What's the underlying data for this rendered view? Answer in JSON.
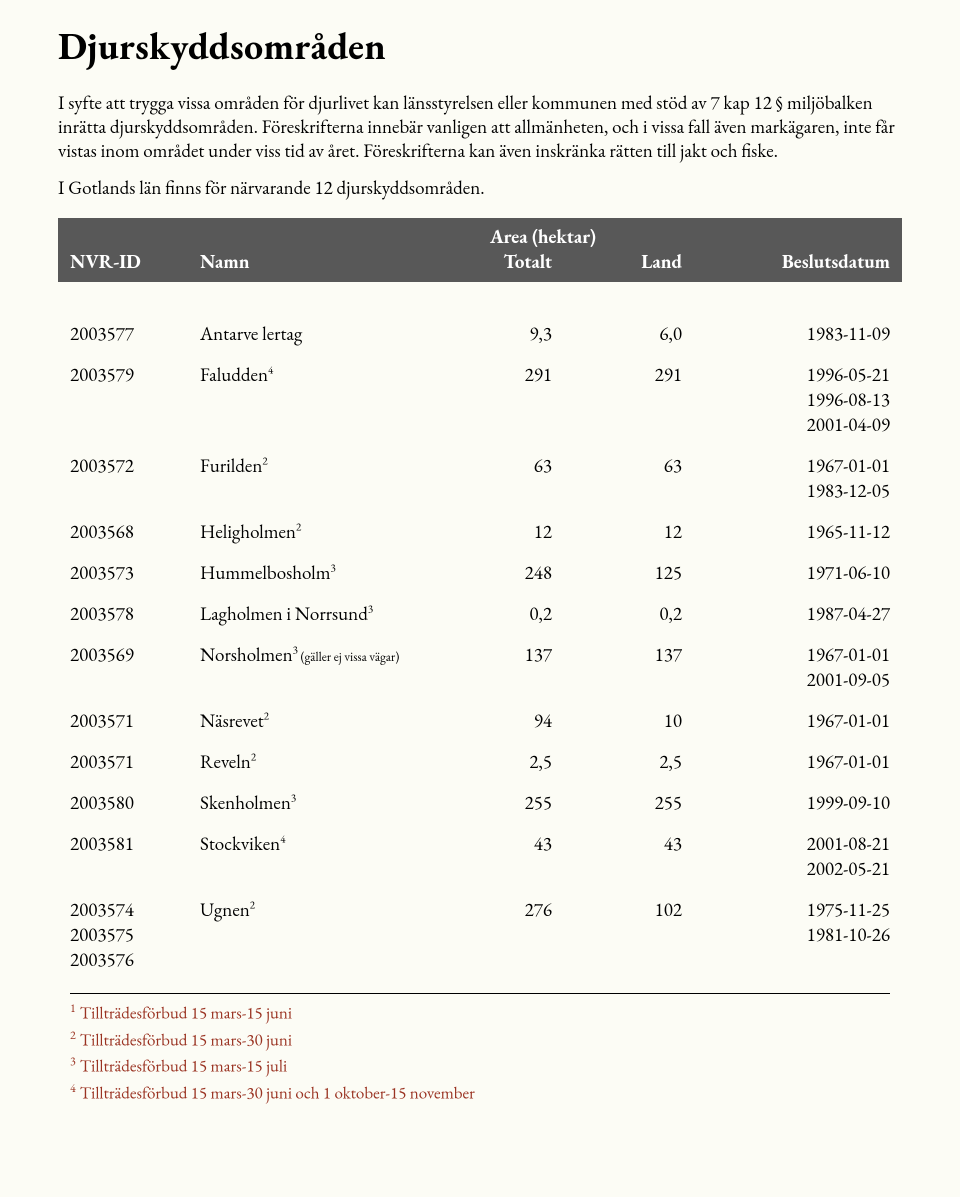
{
  "title": "Djurskyddsområden",
  "paragraphs": [
    "I syfte att trygga vissa områden för djurlivet kan länsstyrelsen eller kommunen med stöd av 7 kap 12 § miljöbalken inrätta djurskyddsområden. Föreskrifterna innebär vanligen att allmänheten, och i vissa fall även markägaren, inte får vistas inom området under viss tid av året. Föreskrifterna kan även inskränka rätten till jakt och fiske.",
    "I Gotlands län finns för närvarande 12 djurskyddsområden."
  ],
  "table": {
    "headers": {
      "nvr": "NVR-ID",
      "namn": "Namn",
      "area_group": "Area (hektar)",
      "totalt": "Totalt",
      "land": "Land",
      "datum": "Beslutsdatum"
    },
    "rows": [
      {
        "ids": [
          "2003577"
        ],
        "name": "Antarve lertag",
        "sup": "",
        "annot": "",
        "totalt": "9,3",
        "land": "6,0",
        "dates": [
          "1983-11-09"
        ]
      },
      {
        "ids": [
          "2003579"
        ],
        "name": "Faludden",
        "sup": "4",
        "annot": "",
        "totalt": "291",
        "land": "291",
        "dates": [
          "1996-05-21",
          "1996-08-13",
          "2001-04-09"
        ]
      },
      {
        "ids": [
          "2003572"
        ],
        "name": "Furilden",
        "sup": "2",
        "annot": "",
        "totalt": "63",
        "land": "63",
        "dates": [
          "1967-01-01",
          "1983-12-05"
        ]
      },
      {
        "ids": [
          "2003568"
        ],
        "name": "Heligholmen",
        "sup": "2",
        "annot": "",
        "totalt": "12",
        "land": "12",
        "dates": [
          "1965-11-12"
        ]
      },
      {
        "ids": [
          "2003573"
        ],
        "name": "Hummelbosholm",
        "sup": "3",
        "annot": "",
        "totalt": "248",
        "land": "125",
        "dates": [
          "1971-06-10"
        ]
      },
      {
        "ids": [
          "2003578"
        ],
        "name": "Lagholmen i Norrsund",
        "sup": "3",
        "annot": "",
        "totalt": "0,2",
        "land": "0,2",
        "dates": [
          "1987-04-27"
        ]
      },
      {
        "ids": [
          "2003569"
        ],
        "name": "Norsholmen",
        "sup": "3",
        "annot": " (gäller ej vissa vägar)",
        "totalt": "137",
        "land": "137",
        "dates": [
          "1967-01-01",
          "2001-09-05"
        ]
      },
      {
        "ids": [
          "2003571"
        ],
        "name": "Näsrevet",
        "sup": "2",
        "annot": "",
        "totalt": "94",
        "land": "10",
        "dates": [
          "1967-01-01"
        ]
      },
      {
        "ids": [
          "2003571"
        ],
        "name": "Reveln",
        "sup": "2",
        "annot": "",
        "totalt": "2,5",
        "land": "2,5",
        "dates": [
          "1967-01-01"
        ]
      },
      {
        "ids": [
          "2003580"
        ],
        "name": "Skenholmen",
        "sup": "3",
        "annot": "",
        "totalt": "255",
        "land": "255",
        "dates": [
          "1999-09-10"
        ]
      },
      {
        "ids": [
          "2003581"
        ],
        "name": "Stockviken",
        "sup": "4",
        "annot": "",
        "totalt": "43",
        "land": "43",
        "dates": [
          "2001-08-21",
          "2002-05-21"
        ]
      },
      {
        "ids": [
          "2003574",
          "2003575",
          "2003576"
        ],
        "name": "Ugnen",
        "sup": "2",
        "annot": "",
        "totalt": "276",
        "land": "102",
        "dates": [
          "1975-11-25",
          "1981-10-26"
        ]
      }
    ]
  },
  "footnotes": [
    {
      "idx": "1",
      "text": "Tillträdesförbud 15 mars-15 juni"
    },
    {
      "idx": "2",
      "text": "Tillträdesförbud 15 mars-30 juni"
    },
    {
      "idx": "3",
      "text": "Tillträdesförbud 15 mars-15 juli"
    },
    {
      "idx": "4",
      "text": "Tillträdesförbud 15 mars-30 juni och 1 oktober-15 november"
    }
  ],
  "colors": {
    "background": "#fcfcf5",
    "header_band_bg": "#585858",
    "header_band_text": "#ffffff",
    "footnote_text": "#9a3322",
    "body_text": "#000000"
  }
}
